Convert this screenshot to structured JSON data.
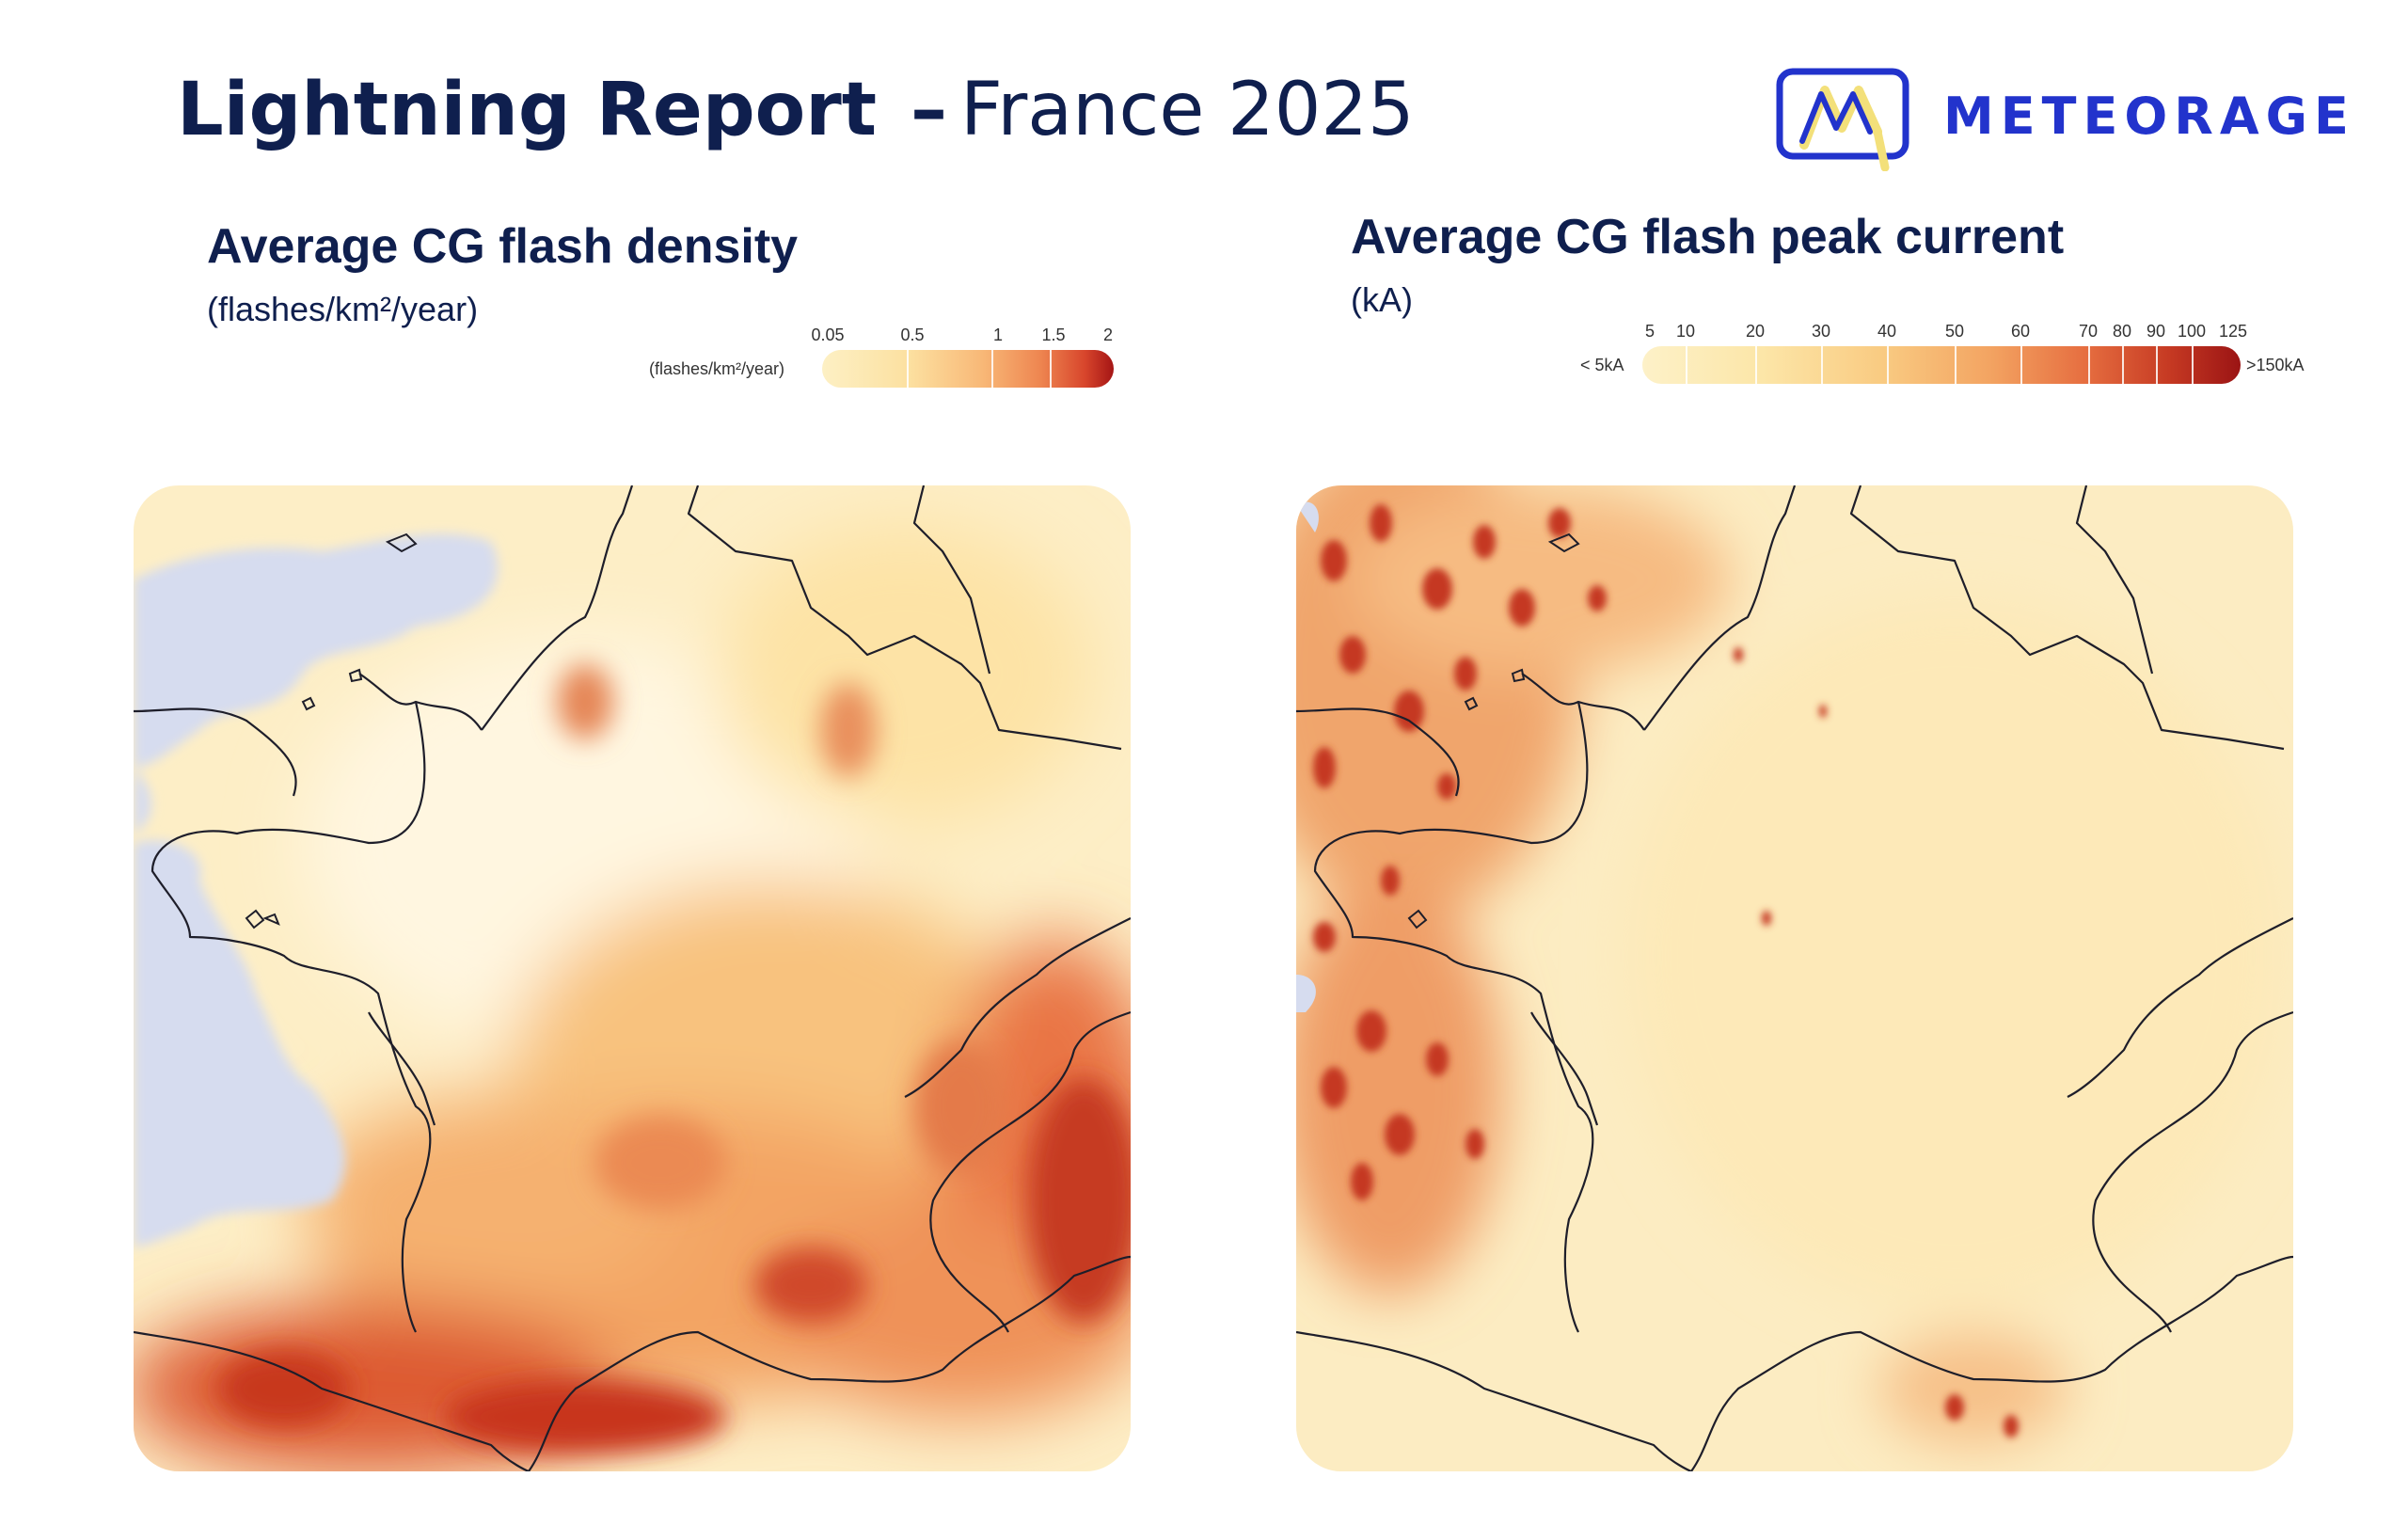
{
  "header": {
    "title_strong": "Lightning Report",
    "title_dash": "–",
    "title_light": "France 2025"
  },
  "logo": {
    "text": "METEORAGE",
    "color": "#2233cc",
    "accent": "#f3e07a"
  },
  "panels": [
    {
      "title": "Average CG flash density",
      "subtitle": "(flashes/km²/year)",
      "legend": {
        "label": "(flashes/km²/year)",
        "ticks": [
          "0.05",
          "0.5",
          "1",
          "1.5",
          "2"
        ],
        "colors": [
          "#fdf0c4",
          "#fbd38d",
          "#f5a060",
          "#e4653a",
          "#a51515"
        ]
      },
      "map_icon": "lightning-density-map"
    },
    {
      "title": "Average CG flash peak current",
      "subtitle": "(kA)",
      "legend": {
        "left_label": "< 5kA",
        "right_label": ">150kA",
        "ticks": [
          "5",
          "10",
          "20",
          "30",
          "40",
          "50",
          "60",
          "70",
          "80",
          "90",
          "100",
          "125"
        ],
        "colors": [
          "#fdf1c8",
          "#fce4a6",
          "#f9c77f",
          "#f3a062",
          "#e5693d",
          "#c63a23",
          "#9b1414"
        ]
      },
      "map_icon": "lightning-peak-current-map"
    }
  ]
}
